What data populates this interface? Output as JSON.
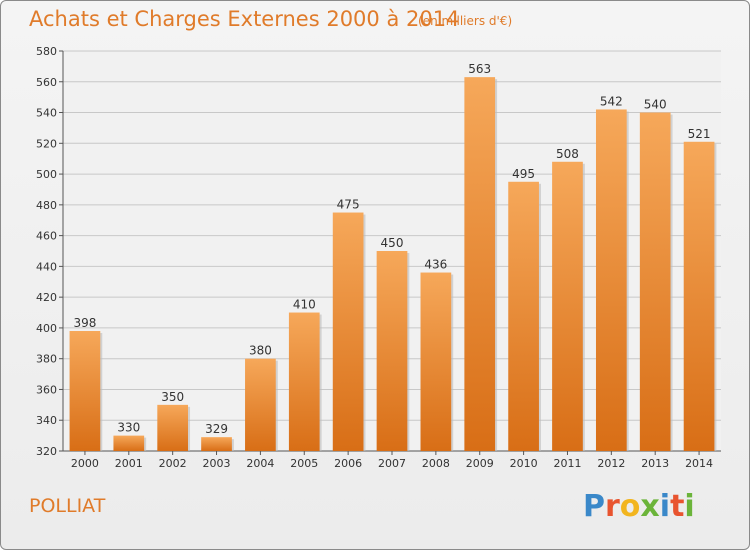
{
  "header": {
    "title": "Achats et Charges Externes 2000 à 2014",
    "unit_note": "(en milliers d'€)"
  },
  "footer": {
    "commune": "POLLIAT",
    "logo_text": "Proxiti"
  },
  "colors": {
    "accent": "#e07b2a",
    "bar_light": "#f6a85a",
    "bar_dark": "#d86e16",
    "logo_p": "#3a88c9",
    "logo_r": "#e8542f",
    "logo_o": "#f2b51f",
    "logo_x": "#6bb43a",
    "logo_i": "#3a88c9",
    "logo_t": "#e8542f",
    "logo_i2": "#6bb43a"
  },
  "chart_data": {
    "type": "bar",
    "title": "Achats et Charges Externes 2000 à 2014",
    "subtitle": "(en milliers d'€)",
    "categories": [
      "2000",
      "2001",
      "2002",
      "2003",
      "2004",
      "2005",
      "2006",
      "2007",
      "2008",
      "2009",
      "2010",
      "2011",
      "2012",
      "2013",
      "2014"
    ],
    "values": [
      398,
      330,
      350,
      329,
      380,
      410,
      475,
      450,
      436,
      563,
      495,
      508,
      542,
      540,
      521
    ],
    "ylim": [
      320,
      580
    ],
    "yticks": [
      320,
      340,
      360,
      380,
      400,
      420,
      440,
      460,
      480,
      500,
      520,
      540,
      560,
      580
    ],
    "grid": true,
    "legend": "none"
  }
}
